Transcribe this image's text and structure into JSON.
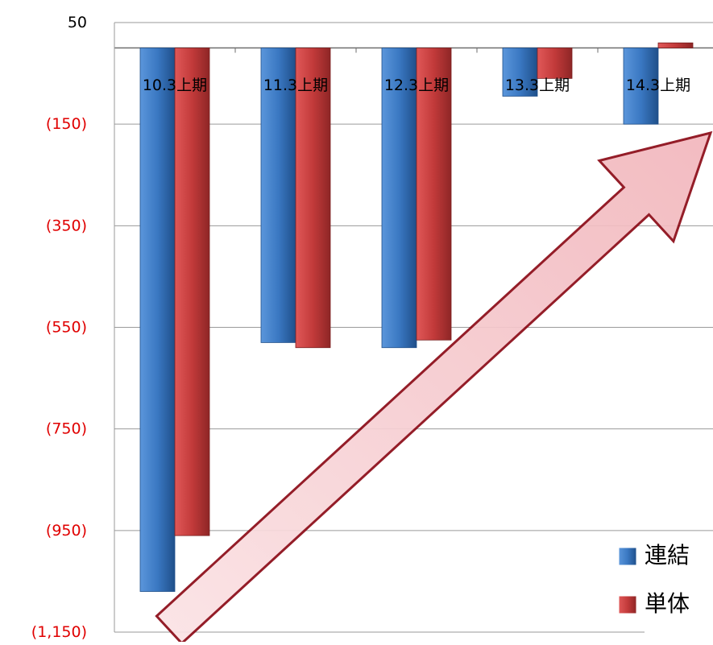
{
  "chart_data": {
    "type": "bar",
    "categories": [
      "10.3上期",
      "11.3上期",
      "12.3上期",
      "13.3上期",
      "14.3上期"
    ],
    "series": [
      {
        "name": "連結",
        "color": "#3a78c2",
        "values": [
          -1070,
          -580,
          -590,
          -95,
          -150
        ]
      },
      {
        "name": "単体",
        "color": "#c23a3a",
        "values": [
          -960,
          -590,
          -575,
          -60,
          10
        ]
      }
    ],
    "y_tick_labels": [
      "50",
      "(150)",
      "(350)",
      "(550)",
      "(750)",
      "(950)",
      "(1,150)"
    ],
    "y_tick_values": [
      50,
      -150,
      -350,
      -550,
      -750,
      -950,
      -1150
    ],
    "ylim": [
      -1150,
      50
    ],
    "grid": true,
    "legend": "bottom-right",
    "tick_label_colors": {
      "positive": "#000000",
      "negative": "#e00000"
    },
    "annotation": {
      "type": "arrow",
      "direction": "up-right",
      "color": "#f5c4c8",
      "stroke": "#8b0a16"
    }
  }
}
